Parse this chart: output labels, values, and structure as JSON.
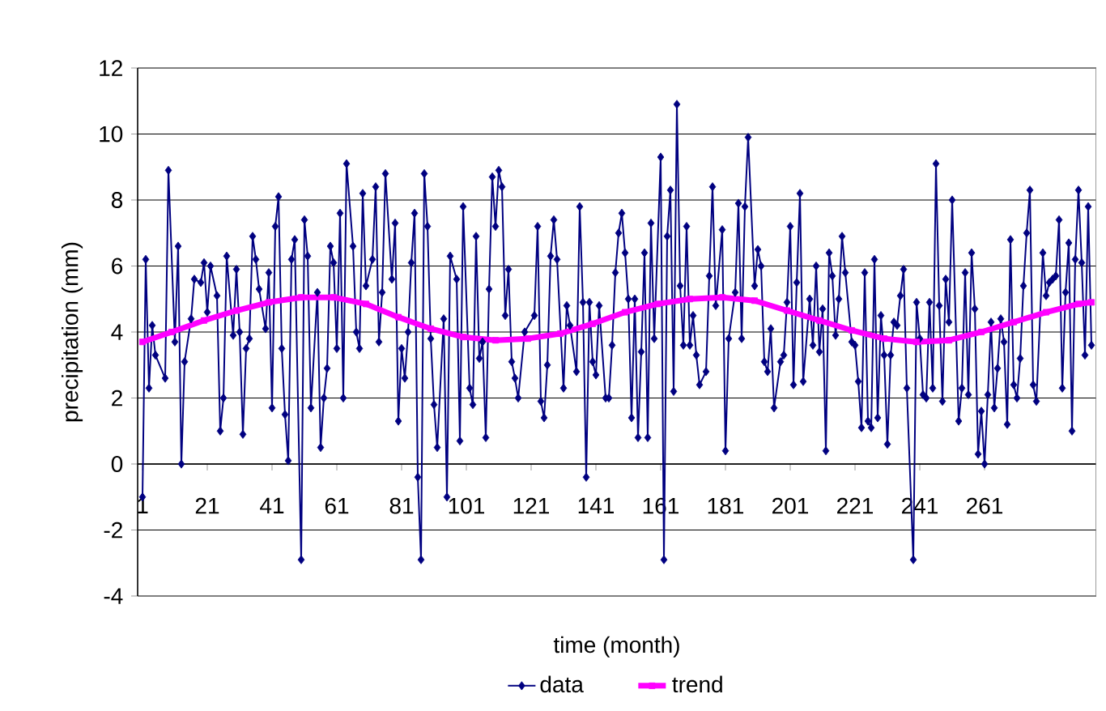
{
  "chart_data": {
    "type": "line",
    "xlabel": "time (month)",
    "ylabel": "precipitation (mm)",
    "xlim": [
      -0.5,
      295.5
    ],
    "xticks": [
      1,
      21,
      41,
      61,
      81,
      101,
      121,
      141,
      161,
      181,
      201,
      221,
      241,
      261
    ],
    "ylim": [
      -4,
      12
    ],
    "yticks": [
      -4,
      -2,
      0,
      2,
      4,
      6,
      8,
      10,
      12
    ],
    "grid": "y",
    "legend": "bottom",
    "series": [
      {
        "name": "data",
        "color": "#000080",
        "marker": "diamond",
        "x": [
          1,
          2,
          3,
          4,
          5,
          8,
          9,
          11,
          12,
          13,
          14,
          16,
          17,
          19,
          20,
          21,
          22,
          24,
          25,
          26,
          27,
          29,
          30,
          31,
          32,
          33,
          34,
          35,
          36,
          37,
          39,
          40,
          41,
          42,
          43,
          44,
          45,
          46,
          47,
          48,
          50,
          51,
          52,
          53,
          55,
          56,
          57,
          58,
          59,
          60,
          61,
          62,
          63,
          64,
          66,
          67,
          68,
          69,
          70,
          72,
          73,
          74,
          75,
          76,
          78,
          79,
          80,
          81,
          82,
          83,
          84,
          85,
          86,
          87,
          88,
          89,
          90,
          91,
          92,
          94,
          95,
          96,
          98,
          99,
          100,
          102,
          103,
          104,
          105,
          106,
          107,
          108,
          109,
          110,
          111,
          112,
          113,
          114,
          115,
          116,
          117,
          119,
          122,
          123,
          124,
          125,
          126,
          127,
          128,
          129,
          131,
          132,
          133,
          135,
          136,
          137,
          138,
          139,
          140,
          141,
          142,
          144,
          145,
          146,
          147,
          148,
          149,
          150,
          151,
          152,
          153,
          154,
          155,
          156,
          157,
          158,
          159,
          161,
          162,
          163,
          164,
          165,
          166,
          167,
          168,
          169,
          170,
          171,
          172,
          173,
          175,
          176,
          177,
          178,
          180,
          181,
          182,
          184,
          185,
          186,
          187,
          188,
          190,
          191,
          192,
          193,
          194,
          195,
          196,
          198,
          199,
          200,
          201,
          202,
          203,
          204,
          205,
          207,
          208,
          209,
          210,
          211,
          212,
          213,
          214,
          215,
          216,
          217,
          218,
          220,
          221,
          222,
          223,
          224,
          225,
          226,
          227,
          228,
          229,
          230,
          231,
          232,
          233,
          234,
          235,
          236,
          237,
          239,
          240,
          241,
          242,
          243,
          244,
          245,
          246,
          247,
          248,
          249,
          250,
          251,
          253,
          254,
          255,
          256,
          257,
          258,
          259,
          260,
          261,
          262,
          263,
          264,
          265,
          266,
          267,
          268,
          269,
          270,
          271,
          272,
          273,
          274,
          275,
          276,
          277,
          279,
          280,
          281,
          282,
          283,
          284,
          285,
          286,
          287,
          288,
          289,
          290,
          291,
          292,
          293,
          294
        ],
        "values": [
          -1.0,
          6.2,
          2.3,
          4.2,
          3.3,
          2.6,
          8.9,
          3.7,
          6.6,
          0.0,
          3.1,
          4.4,
          5.6,
          5.5,
          6.1,
          4.6,
          6.0,
          5.1,
          1.0,
          2.0,
          6.3,
          3.9,
          5.9,
          4.0,
          0.9,
          3.5,
          3.8,
          6.9,
          6.2,
          5.3,
          4.1,
          5.8,
          1.7,
          7.2,
          8.1,
          3.5,
          1.5,
          0.1,
          6.2,
          6.8,
          -2.9,
          7.4,
          6.3,
          1.7,
          5.2,
          0.5,
          2.0,
          2.9,
          6.6,
          6.1,
          3.5,
          7.6,
          2.0,
          9.1,
          6.6,
          4.0,
          3.5,
          8.2,
          5.4,
          6.2,
          8.4,
          3.7,
          5.2,
          8.8,
          5.6,
          7.3,
          1.3,
          3.5,
          2.6,
          4.0,
          6.1,
          7.6,
          -0.4,
          -2.9,
          8.8,
          7.2,
          3.8,
          1.8,
          0.5,
          4.4,
          -1.0,
          6.3,
          5.6,
          0.7,
          7.8,
          2.3,
          1.8,
          6.9,
          3.2,
          3.7,
          0.8,
          5.3,
          8.7,
          7.2,
          8.9,
          8.4,
          4.5,
          5.9,
          3.1,
          2.6,
          2.0,
          4.0,
          4.5,
          7.2,
          1.9,
          1.4,
          3.0,
          6.3,
          7.4,
          6.2,
          2.3,
          4.8,
          4.2,
          2.8,
          7.8,
          4.9,
          -0.4,
          4.9,
          3.1,
          2.7,
          4.8,
          2.0,
          2.0,
          3.6,
          5.8,
          7.0,
          7.6,
          6.4,
          5.0,
          1.4,
          5.0,
          0.8,
          3.4,
          6.4,
          0.8,
          7.3,
          3.8,
          9.3,
          -2.9,
          6.9,
          8.3,
          2.2,
          10.9,
          5.4,
          3.6,
          7.2,
          3.6,
          4.5,
          3.3,
          2.4,
          2.8,
          5.7,
          8.4,
          4.8,
          7.1,
          0.4,
          3.8,
          5.2,
          7.9,
          3.8,
          7.8,
          9.9,
          5.4,
          6.5,
          6.0,
          3.1,
          2.8,
          4.1,
          1.7,
          3.1,
          3.3,
          4.9,
          7.2,
          2.4,
          5.5,
          8.2,
          2.5,
          5.0,
          3.6,
          6.0,
          3.4,
          4.7,
          0.4,
          6.4,
          5.7,
          3.9,
          5.0,
          6.9,
          5.8,
          3.7,
          3.6,
          2.5,
          1.1,
          5.8,
          1.3,
          1.1,
          6.2,
          1.4,
          4.5,
          3.3,
          0.6,
          3.3,
          4.3,
          4.2,
          5.1,
          5.9,
          2.3,
          -2.9,
          4.9,
          3.8,
          2.1,
          2.0,
          4.9,
          2.3,
          9.1,
          4.8,
          1.9,
          5.6,
          4.3,
          8.0,
          1.3,
          2.3,
          5.8,
          2.1,
          6.4,
          4.7,
          0.3,
          1.6,
          0.0,
          2.1,
          4.3,
          1.7,
          2.9,
          4.4,
          3.7,
          1.2,
          6.8,
          2.4,
          2.0,
          3.2,
          5.4,
          7.0,
          8.3,
          2.4,
          1.9,
          6.4,
          5.1,
          5.5,
          5.6,
          5.7,
          7.4,
          2.3,
          5.2,
          6.7,
          1.0,
          6.2,
          8.3,
          6.1,
          3.3,
          7.8,
          3.6
        ]
      },
      {
        "name": "trend",
        "color": "#ff00ff",
        "marker": "square",
        "x": [
          1,
          10,
          20,
          30,
          40,
          50,
          60,
          70,
          80,
          90,
          100,
          110,
          120,
          130,
          140,
          150,
          160,
          170,
          180,
          190,
          200,
          210,
          220,
          230,
          240,
          250,
          260,
          270,
          280,
          290,
          294
        ],
        "values": [
          3.7,
          4.0,
          4.35,
          4.65,
          4.9,
          5.05,
          5.05,
          4.85,
          4.45,
          4.1,
          3.85,
          3.75,
          3.8,
          3.95,
          4.25,
          4.6,
          4.85,
          5.0,
          5.05,
          4.95,
          4.65,
          4.35,
          4.05,
          3.8,
          3.7,
          3.75,
          4.0,
          4.3,
          4.6,
          4.85,
          4.9
        ]
      }
    ]
  }
}
